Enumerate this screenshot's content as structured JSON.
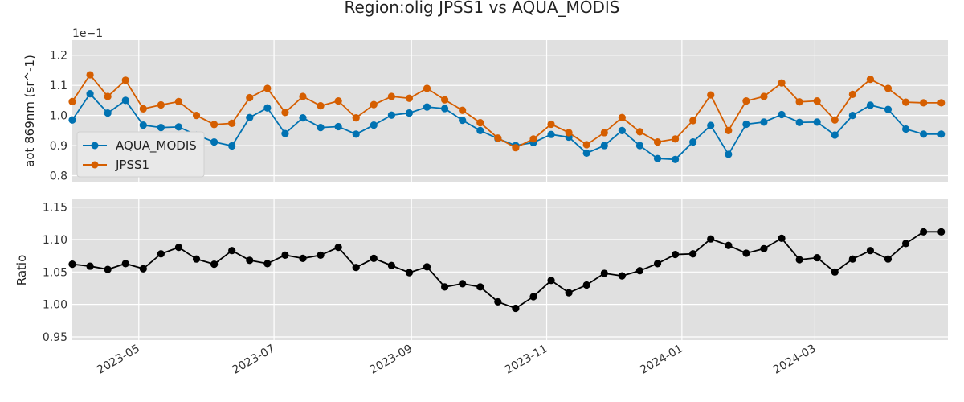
{
  "title": "Region:olig JPSS1 vs AQUA_MODIS",
  "colors": {
    "aqua": "#0072b2",
    "jpss1": "#d55e00",
    "ratio": "#000000",
    "panel_bg": "#e0e0e0",
    "grid": "#ffffff"
  },
  "chart_data": [
    {
      "type": "line",
      "ylabel": "aot 869nm (sr^-1)",
      "offset_text": "1e−1",
      "ylim": [
        0.78,
        1.25
      ],
      "yticks": [
        0.8,
        0.9,
        1.0,
        1.1,
        1.2
      ],
      "ytick_labels": [
        "0.8",
        "0.9",
        "1.0",
        "1.1",
        "1.2"
      ],
      "xlim": [
        "2023-04-01",
        "2024-04-30"
      ],
      "legend": {
        "placement": "lower-left",
        "entries": [
          "AQUA_MODIS",
          "JPSS1"
        ]
      },
      "grid": true,
      "x": [
        "2023-04-01",
        "2023-04-09",
        "2023-04-17",
        "2023-04-25",
        "2023-05-03",
        "2023-05-11",
        "2023-05-19",
        "2023-05-27",
        "2023-06-04",
        "2023-06-12",
        "2023-06-20",
        "2023-06-28",
        "2023-07-06",
        "2023-07-14",
        "2023-07-22",
        "2023-07-30",
        "2023-08-07",
        "2023-08-15",
        "2023-08-23",
        "2023-08-31",
        "2023-09-08",
        "2023-09-16",
        "2023-09-24",
        "2023-10-02",
        "2023-10-10",
        "2023-10-18",
        "2023-10-26",
        "2023-11-03",
        "2023-11-11",
        "2023-11-19",
        "2023-11-27",
        "2023-12-05",
        "2023-12-13",
        "2023-12-21",
        "2023-12-29",
        "2024-01-06",
        "2024-01-14",
        "2024-01-22",
        "2024-01-30",
        "2024-02-07",
        "2024-02-15",
        "2024-02-23",
        "2024-03-02",
        "2024-03-10",
        "2024-03-18",
        "2024-03-26",
        "2024-04-03",
        "2024-04-11",
        "2024-04-19",
        "2024-04-27"
      ],
      "series": [
        {
          "name": "AQUA_MODIS",
          "color": "#0072b2",
          "values": [
            0.985,
            1.072,
            1.008,
            1.05,
            0.968,
            0.96,
            0.962,
            0.935,
            0.912,
            0.899,
            0.993,
            1.025,
            0.94,
            0.992,
            0.96,
            0.963,
            0.938,
            0.968,
            1.001,
            1.008,
            1.028,
            1.023,
            0.984,
            0.95,
            0.923,
            0.9,
            0.91,
            0.937,
            0.928,
            0.875,
            0.9,
            0.95,
            0.9,
            0.857,
            0.854,
            0.912,
            0.967,
            0.871,
            0.971,
            0.978,
            1.003,
            0.977,
            0.978,
            0.935,
            1.0,
            1.034,
            1.02,
            0.955,
            0.938,
            0.938
          ]
        },
        {
          "name": "JPSS1",
          "color": "#d55e00",
          "values": [
            1.046,
            1.135,
            1.063,
            1.117,
            1.022,
            1.035,
            1.046,
            1.0,
            0.97,
            0.974,
            1.059,
            1.09,
            1.01,
            1.063,
            1.032,
            1.048,
            0.992,
            1.036,
            1.063,
            1.057,
            1.09,
            1.052,
            1.017,
            0.976,
            0.925,
            0.893,
            0.922,
            0.971,
            0.943,
            0.903,
            0.943,
            0.993,
            0.946,
            0.912,
            0.922,
            0.983,
            1.068,
            0.95,
            1.048,
            1.063,
            1.108,
            1.045,
            1.048,
            0.985,
            1.07,
            1.12,
            1.09,
            1.044,
            1.042,
            1.042
          ]
        }
      ]
    },
    {
      "type": "line",
      "ylabel": "Ratio",
      "ylim": [
        0.945,
        1.162
      ],
      "yticks": [
        0.95,
        1.0,
        1.05,
        1.1,
        1.15
      ],
      "ytick_labels": [
        "0.95",
        "1.00",
        "1.05",
        "1.10",
        "1.15"
      ],
      "xtick_dates": [
        "2023-05-01",
        "2023-07-01",
        "2023-09-01",
        "2023-11-01",
        "2024-01-01",
        "2024-03-01"
      ],
      "xtick_labels": [
        "2023-05",
        "2023-07",
        "2023-09",
        "2023-11",
        "2024-01",
        "2024-03"
      ],
      "grid": true,
      "series": [
        {
          "name": "",
          "color": "#000000",
          "values": [
            1.062,
            1.059,
            1.054,
            1.063,
            1.055,
            1.078,
            1.088,
            1.07,
            1.062,
            1.083,
            1.068,
            1.063,
            1.076,
            1.071,
            1.076,
            1.088,
            1.057,
            1.071,
            1.06,
            1.049,
            1.058,
            1.027,
            1.032,
            1.027,
            1.004,
            0.994,
            1.012,
            1.037,
            1.018,
            1.03,
            1.048,
            1.044,
            1.052,
            1.063,
            1.077,
            1.078,
            1.101,
            1.091,
            1.079,
            1.086,
            1.102,
            1.069,
            1.072,
            1.05,
            1.07,
            1.083,
            1.07,
            1.094,
            1.112,
            1.112
          ]
        }
      ]
    }
  ]
}
